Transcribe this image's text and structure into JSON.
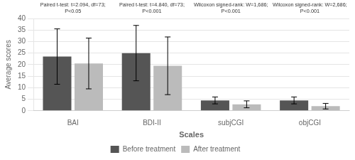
{
  "chart_data": {
    "type": "bar",
    "xlabel": "Scales",
    "ylabel": "Average scores",
    "categories": [
      "BAI",
      "BDI-II",
      "subjCGI",
      "objCGI"
    ],
    "series": [
      {
        "name": "Before treatment",
        "color": "#555555",
        "values": [
          23.5,
          25.0,
          4.5,
          4.5
        ],
        "errors": [
          12.0,
          12.0,
          1.5,
          1.5
        ]
      },
      {
        "name": "After treatment",
        "color": "#bbbbbb",
        "values": [
          20.5,
          19.5,
          2.8,
          2.0
        ],
        "errors": [
          11.0,
          12.5,
          1.5,
          1.2
        ]
      }
    ],
    "annotations": [
      "Paired t-test: t=2.094, df=73;\nP<0.05",
      "Paired t-test: t=4.840, df=73;\nP<0.001",
      "Wilcoxon signed-rank: W=1,686;\nP<0.001",
      "Wilcoxon signed-rank: W=2,686;\nP<0.001"
    ],
    "ylim": [
      0,
      40
    ],
    "yticks": [
      0,
      5,
      10,
      15,
      20,
      25,
      30,
      35,
      40
    ],
    "grid": true,
    "legend": "bottom"
  }
}
